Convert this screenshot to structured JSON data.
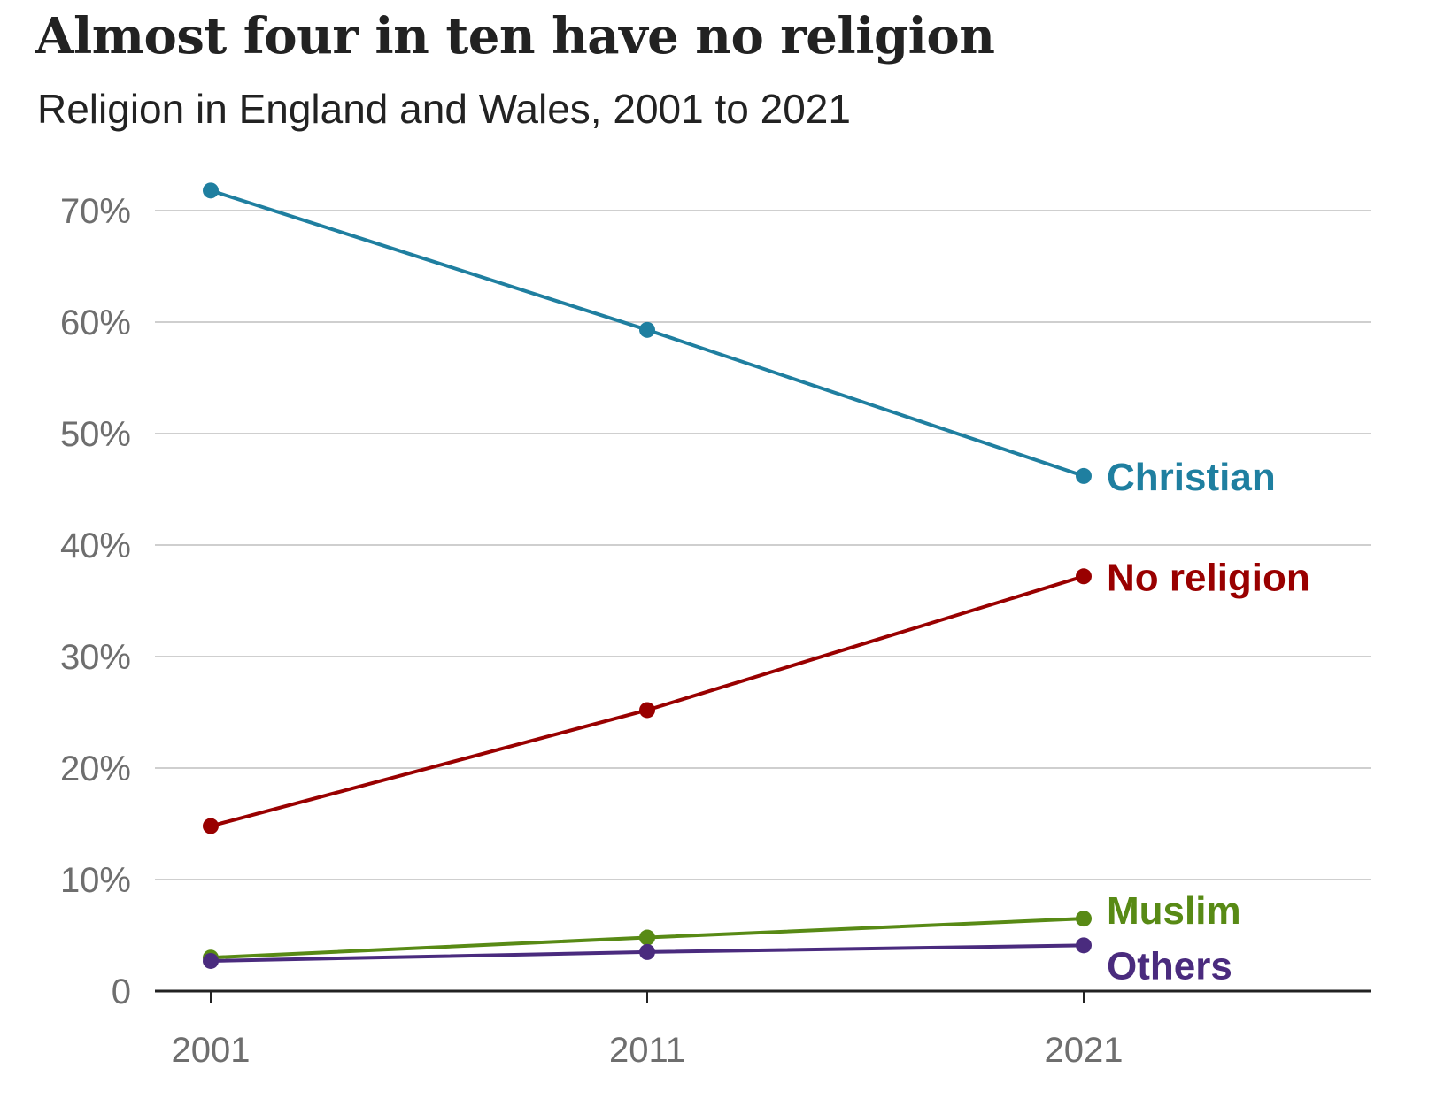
{
  "chart_data": {
    "type": "line",
    "title": "Almost four in ten have no religion",
    "subtitle": "Religion in England and Wales, 2001 to 2021",
    "x": [
      "2001",
      "2011",
      "2021"
    ],
    "ylim": [
      0,
      70
    ],
    "yticks": [
      {
        "value": 0,
        "label": "0"
      },
      {
        "value": 10,
        "label": "10%"
      },
      {
        "value": 20,
        "label": "20%"
      },
      {
        "value": 30,
        "label": "30%"
      },
      {
        "value": 40,
        "label": "40%"
      },
      {
        "value": 50,
        "label": "50%"
      },
      {
        "value": 60,
        "label": "60%"
      },
      {
        "value": 70,
        "label": "70%"
      }
    ],
    "grid": true,
    "legend": "direct labels at line ends",
    "series": [
      {
        "name": "Christian",
        "color": "#1f7fa0",
        "values": [
          71.8,
          59.3,
          46.2
        ]
      },
      {
        "name": "No religion",
        "color": "#990000",
        "values": [
          14.8,
          25.2,
          37.2
        ]
      },
      {
        "name": "Muslim",
        "color": "#588a15",
        "values": [
          3.0,
          4.8,
          6.5
        ]
      },
      {
        "name": "Others",
        "color": "#4a2b7e",
        "values": [
          2.7,
          3.5,
          4.1
        ]
      }
    ]
  }
}
